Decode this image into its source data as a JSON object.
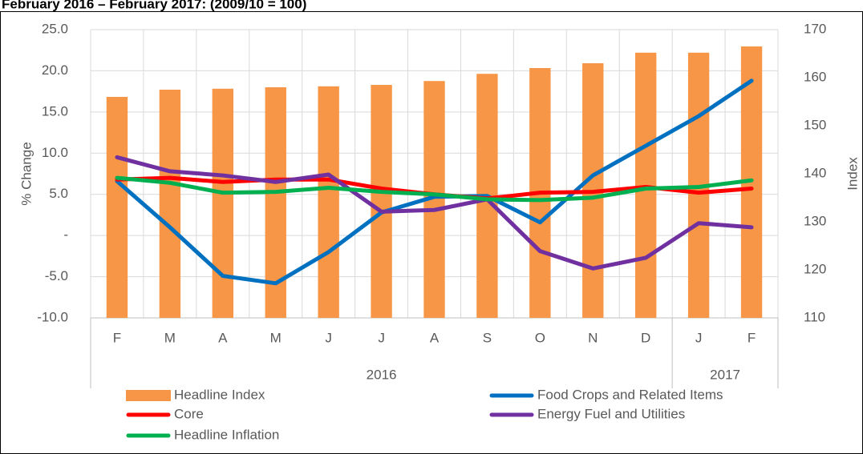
{
  "chart_data": {
    "type": "bar",
    "title": "February 2016 – February 2017: (2009/10 = 100)",
    "y_label": "% Change",
    "y2_label": "Index",
    "categories": [
      "F",
      "M",
      "A",
      "M",
      "J",
      "J",
      "A",
      "S",
      "O",
      "N",
      "D",
      "J",
      "F"
    ],
    "category_groups": [
      {
        "label": "2016",
        "count": 11
      },
      {
        "label": "2017",
        "count": 2
      }
    ],
    "ylim": [
      -10,
      25
    ],
    "yticks": [
      {
        "value": -10,
        "label": "-10.0"
      },
      {
        "value": -5,
        "label": "-5.0"
      },
      {
        "value": 0,
        "label": "-"
      },
      {
        "value": 5,
        "label": "5.0"
      },
      {
        "value": 10,
        "label": "10.0"
      },
      {
        "value": 15,
        "label": "15.0"
      },
      {
        "value": 20,
        "label": "20.0"
      },
      {
        "value": 25,
        "label": "25.0"
      }
    ],
    "y2lim": [
      110,
      170
    ],
    "y2ticks": [
      110,
      120,
      130,
      140,
      150,
      160,
      170
    ],
    "grid": true,
    "legend": "bottom",
    "series": [
      {
        "name": "Headline Index",
        "type": "bar",
        "axis": "y2",
        "color": "#f79646",
        "values": [
          156.0,
          157.5,
          157.7,
          158.0,
          158.2,
          158.5,
          159.3,
          160.8,
          162.0,
          163.0,
          165.2,
          165.2,
          166.5
        ]
      },
      {
        "name": "Food Crops and Related Items",
        "type": "line",
        "color": "#0070c0",
        "values": [
          6.6,
          1.0,
          -4.9,
          -5.8,
          -2.0,
          2.8,
          4.7,
          4.8,
          1.6,
          7.3,
          10.9,
          14.5,
          18.8
        ]
      },
      {
        "name": "Core",
        "type": "line",
        "color": "#ff0000",
        "values": [
          6.8,
          7.0,
          6.5,
          6.8,
          6.8,
          5.7,
          5.0,
          4.5,
          5.2,
          5.3,
          5.9,
          5.2,
          5.7
        ]
      },
      {
        "name": "Energy Fuel and Utilities",
        "type": "line",
        "color": "#7030a0",
        "values": [
          9.5,
          7.8,
          7.3,
          6.5,
          7.4,
          2.9,
          3.1,
          4.4,
          -1.9,
          -4.0,
          -2.7,
          1.5,
          1.0
        ]
      },
      {
        "name": "Headline Inflation",
        "type": "line",
        "color": "#00b050",
        "values": [
          7.0,
          6.4,
          5.2,
          5.3,
          5.8,
          5.3,
          5.0,
          4.4,
          4.3,
          4.6,
          5.7,
          5.9,
          6.7
        ]
      }
    ]
  }
}
